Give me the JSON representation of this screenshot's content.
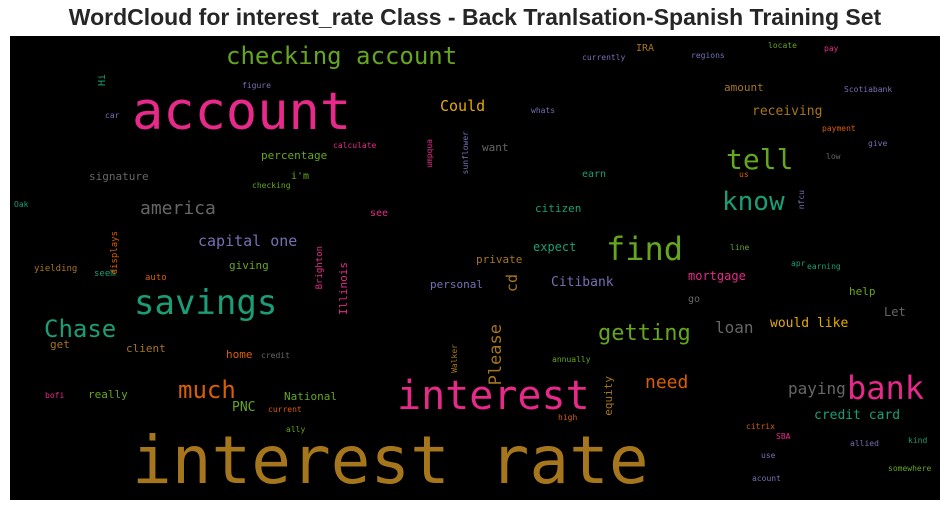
{
  "chart_data": {
    "type": "wordcloud",
    "title": "WordCloud for interest_rate Class - Back Tranlsation-Spanish Training Set",
    "background": "#000000",
    "palette": [
      "#a6761d",
      "#e7298a",
      "#1b9e77",
      "#66a61e",
      "#d95f02",
      "#7570b3",
      "#e6ab02",
      "#666666"
    ],
    "words": [
      {
        "text": "interest rate",
        "color": "#a6761d"
      },
      {
        "text": "account",
        "color": "#e7298a"
      },
      {
        "text": "interest",
        "color": "#e7298a"
      },
      {
        "text": "savings",
        "color": "#1b9e77"
      },
      {
        "text": "bank",
        "color": "#e7298a"
      },
      {
        "text": "find",
        "color": "#66a61e"
      },
      {
        "text": "checking account",
        "color": "#66a61e"
      },
      {
        "text": "tell",
        "color": "#66a61e"
      },
      {
        "text": "know",
        "color": "#1b9e77"
      },
      {
        "text": "Chase",
        "color": "#1b9e77"
      },
      {
        "text": "much",
        "color": "#d95f02"
      },
      {
        "text": "getting",
        "color": "#66a61e"
      },
      {
        "text": "america",
        "color": "#666666"
      },
      {
        "text": "need",
        "color": "#d95f02"
      },
      {
        "text": "Please",
        "color": "#a6761d"
      },
      {
        "text": "paying",
        "color": "#666666"
      },
      {
        "text": "loan",
        "color": "#666666"
      },
      {
        "text": "capital one",
        "color": "#7570b3"
      },
      {
        "text": "Could",
        "color": "#e6ab02"
      },
      {
        "text": "credit card",
        "color": "#1b9e77"
      },
      {
        "text": "receiving",
        "color": "#a6761d"
      },
      {
        "text": "would like",
        "color": "#e6ab02"
      },
      {
        "text": "Citibank",
        "color": "#7570b3"
      },
      {
        "text": "mortgage",
        "color": "#e7298a"
      },
      {
        "text": "PNC",
        "color": "#66a61e"
      },
      {
        "text": "cd",
        "color": "#a6761d"
      },
      {
        "text": "expect",
        "color": "#1b9e77"
      },
      {
        "text": "Let",
        "color": "#666666"
      },
      {
        "text": "percentage",
        "color": "#66a61e"
      },
      {
        "text": "giving",
        "color": "#66a61e"
      },
      {
        "text": "signature",
        "color": "#666666"
      },
      {
        "text": "amount",
        "color": "#a6761d"
      },
      {
        "text": "citizen",
        "color": "#1b9e77"
      },
      {
        "text": "private",
        "color": "#a6761d"
      },
      {
        "text": "personal",
        "color": "#7570b3"
      },
      {
        "text": "help",
        "color": "#66a61e"
      },
      {
        "text": "really",
        "color": "#66a61e"
      },
      {
        "text": "National",
        "color": "#66a61e"
      },
      {
        "text": "home",
        "color": "#d95f02"
      },
      {
        "text": "client",
        "color": "#a6761d"
      },
      {
        "text": "get",
        "color": "#a6761d"
      },
      {
        "text": "Illinois",
        "color": "#e7298a"
      },
      {
        "text": "equity",
        "color": "#a6761d"
      },
      {
        "text": "want",
        "color": "#666666"
      },
      {
        "text": "earn",
        "color": "#1b9e77"
      },
      {
        "text": "go",
        "color": "#666666"
      },
      {
        "text": "see",
        "color": "#e7298a"
      },
      {
        "text": "i'm",
        "color": "#66a61e"
      },
      {
        "text": "Hi",
        "color": "#1b9e77"
      },
      {
        "text": "IRA",
        "color": "#a6761d"
      },
      {
        "text": "auto",
        "color": "#d95f02"
      },
      {
        "text": "yielding",
        "color": "#a6761d"
      },
      {
        "text": "seem",
        "color": "#1b9e77"
      },
      {
        "text": "displays",
        "color": "#d95f02"
      },
      {
        "text": "Brighton",
        "color": "#e7298a"
      },
      {
        "text": "umpqua",
        "color": "#e7298a"
      },
      {
        "text": "sunflower",
        "color": "#7570b3"
      },
      {
        "text": "calculate",
        "color": "#e7298a"
      },
      {
        "text": "checking",
        "color": "#66a61e"
      },
      {
        "text": "car",
        "color": "#7570b3"
      },
      {
        "text": "figure",
        "color": "#7570b3"
      },
      {
        "text": "whats",
        "color": "#7570b3"
      },
      {
        "text": "currently",
        "color": "#7570b3"
      },
      {
        "text": "regions",
        "color": "#7570b3"
      },
      {
        "text": "locate",
        "color": "#66a61e"
      },
      {
        "text": "pay",
        "color": "#e7298a"
      },
      {
        "text": "Scotiabank",
        "color": "#7570b3"
      },
      {
        "text": "payment",
        "color": "#d95f02"
      },
      {
        "text": "give",
        "color": "#7570b3"
      },
      {
        "text": "low",
        "color": "#666666"
      },
      {
        "text": "us",
        "color": "#d95f02"
      },
      {
        "text": "nfcu",
        "color": "#7570b3"
      },
      {
        "text": "line",
        "color": "#66a61e"
      },
      {
        "text": "apr",
        "color": "#1b9e77"
      },
      {
        "text": "earning",
        "color": "#1b9e77"
      },
      {
        "text": "Oak",
        "color": "#1b9e77"
      },
      {
        "text": "credit",
        "color": "#666666"
      },
      {
        "text": "Walker",
        "color": "#a6761d"
      },
      {
        "text": "annually",
        "color": "#66a61e"
      },
      {
        "text": "bofi",
        "color": "#e7298a"
      },
      {
        "text": "current",
        "color": "#d95f02"
      },
      {
        "text": "ally",
        "color": "#66a61e"
      },
      {
        "text": "high",
        "color": "#d95f02"
      },
      {
        "text": "citrix",
        "color": "#d95f02"
      },
      {
        "text": "SBA",
        "color": "#e7298a"
      },
      {
        "text": "allied",
        "color": "#7570b3"
      },
      {
        "text": "kind",
        "color": "#1b9e77"
      },
      {
        "text": "use",
        "color": "#7570b3"
      },
      {
        "text": "somewhere",
        "color": "#66a61e"
      },
      {
        "text": "acount",
        "color": "#7570b3"
      }
    ]
  }
}
